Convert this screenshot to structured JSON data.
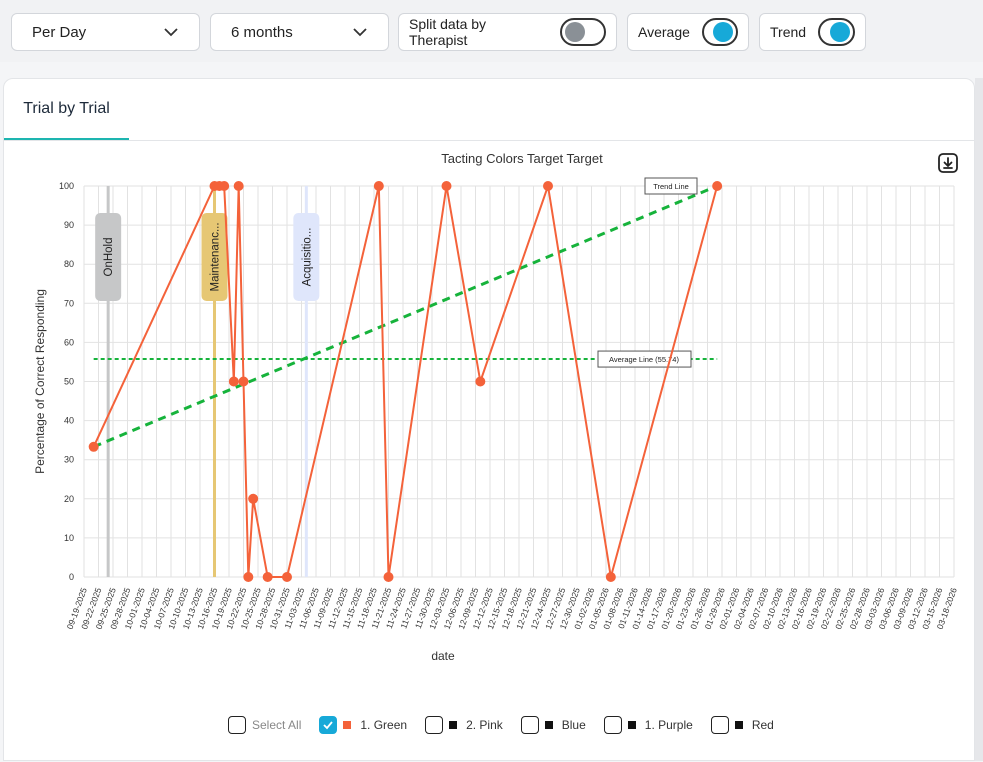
{
  "toolbar": {
    "period": "Per Day",
    "range": "6 months",
    "split_label": "Split data by Therapist",
    "average_label": "Average",
    "trend_label": "Trend"
  },
  "tabs": [
    "Trial by Trial"
  ],
  "colors": {
    "series": "#f4623a",
    "trend": "#16b33b",
    "average": "#16b33b",
    "accent": "#17a9d8",
    "tab_underline": "#1db5b0",
    "onhold": "#c6c7c8",
    "maintenance": "#e6c774",
    "acquisition": "#dfe6fb"
  },
  "chart_data": {
    "type": "line",
    "title": "Tacting Colors Target Target",
    "xlabel": "date",
    "ylabel": "Percentage of Correct Responding",
    "ylim": [
      0,
      100
    ],
    "yticks": [
      0,
      10,
      20,
      30,
      40,
      50,
      60,
      70,
      80,
      90,
      100
    ],
    "categories": [
      "09-19-2025",
      "09-22-2025",
      "09-25-2025",
      "09-28-2025",
      "10-01-2025",
      "10-04-2025",
      "10-07-2025",
      "10-10-2025",
      "10-13-2025",
      "10-16-2025",
      "10-19-2025",
      "10-22-2025",
      "10-25-2025",
      "10-28-2025",
      "10-31-2025",
      "11-03-2025",
      "11-06-2025",
      "11-09-2025",
      "11-12-2025",
      "11-15-2025",
      "11-18-2025",
      "11-21-2025",
      "11-24-2025",
      "11-27-2025",
      "11-30-2025",
      "12-03-2025",
      "12-06-2025",
      "12-09-2025",
      "12-12-2025",
      "12-15-2025",
      "12-18-2025",
      "12-21-2025",
      "12-24-2025",
      "12-27-2025",
      "12-30-2025",
      "01-02-2026",
      "01-05-2026",
      "01-08-2026",
      "01-11-2026",
      "01-14-2026",
      "01-17-2026",
      "01-20-2026",
      "01-23-2026",
      "01-26-2026",
      "01-29-2026",
      "02-01-2026",
      "02-04-2026",
      "02-07-2026",
      "02-10-2026",
      "02-13-2026",
      "02-16-2026",
      "02-19-2026",
      "02-22-2026",
      "02-25-2026",
      "02-28-2026",
      "03-03-2026",
      "03-06-2026",
      "03-09-2026",
      "03-12-2026",
      "03-15-2026",
      "03-18-2026"
    ],
    "series": [
      {
        "name": "1. Green",
        "x": [
          "09-21-2025",
          "10-16-2025",
          "10-17-2025",
          "10-18-2025",
          "10-20-2025",
          "10-21-2025",
          "10-22-2025",
          "10-23-2025",
          "10-24-2025",
          "10-27-2025",
          "10-31-2025",
          "11-19-2025",
          "11-21-2025",
          "12-03-2025",
          "12-10-2025",
          "12-24-2025",
          "01-06-2026",
          "01-28-2026"
        ],
        "values": [
          33.3,
          100,
          100,
          100,
          50,
          100,
          50,
          0,
          20,
          0,
          0,
          100,
          0,
          100,
          50,
          100,
          0,
          100
        ]
      }
    ],
    "average": {
      "value": 55.74,
      "label": "Average Line (55.74)",
      "x_start": "09-21-2025",
      "x_end": "01-28-2026"
    },
    "trend": {
      "label": "Trend Line",
      "x_start": "09-21-2025",
      "y_start": 33.3,
      "x_end": "01-28-2026",
      "y_end": 100
    },
    "phase_markers": [
      {
        "label": "OnHold",
        "date": "09-24-2025"
      },
      {
        "label": "Maintenanc...",
        "date": "10-16-2025"
      },
      {
        "label": "Acquisitio...",
        "date": "11-04-2025"
      }
    ],
    "legend": [
      {
        "label": "Select All",
        "checked": false,
        "swatch": null
      },
      {
        "label": "1. Green",
        "checked": true,
        "swatch": "#f4623a"
      },
      {
        "label": "2. Pink",
        "checked": false,
        "swatch": "#111111"
      },
      {
        "label": "Blue",
        "checked": false,
        "swatch": "#111111"
      },
      {
        "label": "1. Purple",
        "checked": false,
        "swatch": "#111111"
      },
      {
        "label": "Red",
        "checked": false,
        "swatch": "#111111"
      }
    ],
    "grid": true,
    "legend_position": "bottom"
  }
}
